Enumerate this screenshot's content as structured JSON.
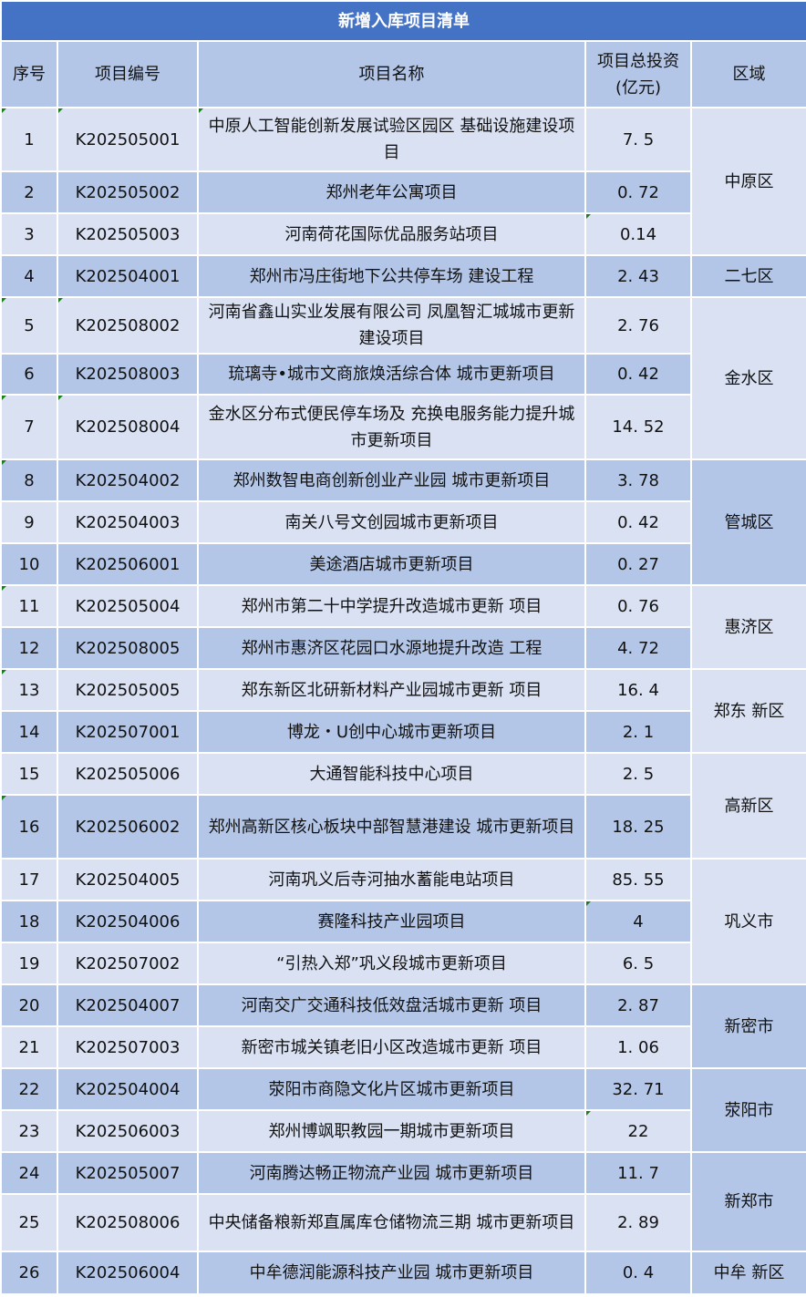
{
  "title": "新增入库项目清单",
  "colors": {
    "title_bg": "#4472C4",
    "row_light": "#D9E1F2",
    "row_dark": "#B4C6E7"
  },
  "headers": [
    "序号",
    "项目编号",
    "项目名称",
    "项目总投资\n(亿元)",
    "区域"
  ],
  "rows": [
    {
      "no": "1",
      "code": "K202505001",
      "name": "中原人工智能创新发展试验区园区 基础设施建设项目",
      "inv": "7. 5"
    },
    {
      "no": "2",
      "code": "K202505002",
      "name": "郑州老年公寓项目",
      "inv": "0. 72"
    },
    {
      "no": "3",
      "code": "K202505003",
      "name": "河南荷花国际优品服务站项目",
      "inv": "0.14"
    },
    {
      "no": "4",
      "code": "K202504001",
      "name": "郑州市冯庄街地下公共停车场 建设工程",
      "inv": "2. 43"
    },
    {
      "no": "5",
      "code": "K202508002",
      "name": "河南省鑫山实业发展有限公司 凤凰智汇城城市更新建设项目",
      "inv": "2. 76"
    },
    {
      "no": "6",
      "code": "K202508003",
      "name": "琉璃寺•城市文商旅焕活综合体 城市更新项目",
      "inv": "0. 42"
    },
    {
      "no": "7",
      "code": "K202508004",
      "name": "金水区分布式便民停车场及 充换电服务能力提升城市更新项目",
      "inv": "14. 52"
    },
    {
      "no": "8",
      "code": "K202504002",
      "name": "郑州数智电商创新创业产业园 城市更新项目",
      "inv": "3. 78"
    },
    {
      "no": "9",
      "code": "K202504003",
      "name": "南关八号文创园城市更新项目",
      "inv": "0. 42"
    },
    {
      "no": "10",
      "code": "K202506001",
      "name": "美途酒店城市更新项目",
      "inv": "0. 27"
    },
    {
      "no": "11",
      "code": "K202505004",
      "name": "郑州市第二十中学提升改造城市更新 项目",
      "inv": "0. 76"
    },
    {
      "no": "12",
      "code": "K202508005",
      "name": "郑州市惠济区花园口水源地提升改造 工程",
      "inv": "4. 72"
    },
    {
      "no": "13",
      "code": "K202505005",
      "name": "郑东新区北研新材料产业园城市更新 项目",
      "inv": "16. 4"
    },
    {
      "no": "14",
      "code": "K202507001",
      "name": "博龙・U创中心城市更新项目",
      "inv": "2. 1"
    },
    {
      "no": "15",
      "code": "K202505006",
      "name": "大通智能科技中心项目",
      "inv": "2. 5"
    },
    {
      "no": "16",
      "code": "K202506002",
      "name": "郑州高新区核心板块中部智慧港建设 城市更新项目",
      "inv": "18. 25"
    },
    {
      "no": "17",
      "code": "K202504005",
      "name": "河南巩义后寺河抽水蓄能电站项目",
      "inv": "85. 55"
    },
    {
      "no": "18",
      "code": "K202504006",
      "name": "赛隆科技产业园项目",
      "inv": "4"
    },
    {
      "no": "19",
      "code": "K202507002",
      "name": "“引热入郑”巩义段城市更新项目",
      "inv": "6. 5"
    },
    {
      "no": "20",
      "code": "K202504007",
      "name": "河南交广交通科技低效盘活城市更新 项目",
      "inv": "2. 87"
    },
    {
      "no": "21",
      "code": "K202507003",
      "name": "新密市城关镇老旧小区改造城市更新 项目",
      "inv": "1. 06"
    },
    {
      "no": "22",
      "code": "K202504004",
      "name": "荥阳市商隐文化片区城市更新项目",
      "inv": "32. 71"
    },
    {
      "no": "23",
      "code": "K202506003",
      "name": "郑州博飒职教园一期城市更新项目",
      "inv": "22"
    },
    {
      "no": "24",
      "code": "K202505007",
      "name": "河南腾达畅正物流产业园 城市更新项目",
      "inv": "11. 7"
    },
    {
      "no": "25",
      "code": "K202508006",
      "name": "中央储备粮新郑直属库仓储物流三期 城市更新项目",
      "inv": "2. 89"
    },
    {
      "no": "26",
      "code": "K202506004",
      "name": "中牟德润能源科技产业园 城市更新项目",
      "inv": "0. 4"
    }
  ],
  "regions": [
    {
      "name": "中原区",
      "start": 0,
      "span": 3
    },
    {
      "name": "二七区",
      "start": 3,
      "span": 1
    },
    {
      "name": "金水区",
      "start": 4,
      "span": 3
    },
    {
      "name": "管城区",
      "start": 7,
      "span": 3
    },
    {
      "name": "惠济区",
      "start": 10,
      "span": 2
    },
    {
      "name": "郑东 新区",
      "start": 12,
      "span": 2
    },
    {
      "name": "高新区",
      "start": 14,
      "span": 2
    },
    {
      "name": "巩义市",
      "start": 16,
      "span": 3
    },
    {
      "name": "新密市",
      "start": 19,
      "span": 2
    },
    {
      "name": "荥阳市",
      "start": 21,
      "span": 2
    },
    {
      "name": "新郑市",
      "start": 23,
      "span": 2
    },
    {
      "name": "中牟 新区",
      "start": 25,
      "span": 1
    }
  ]
}
